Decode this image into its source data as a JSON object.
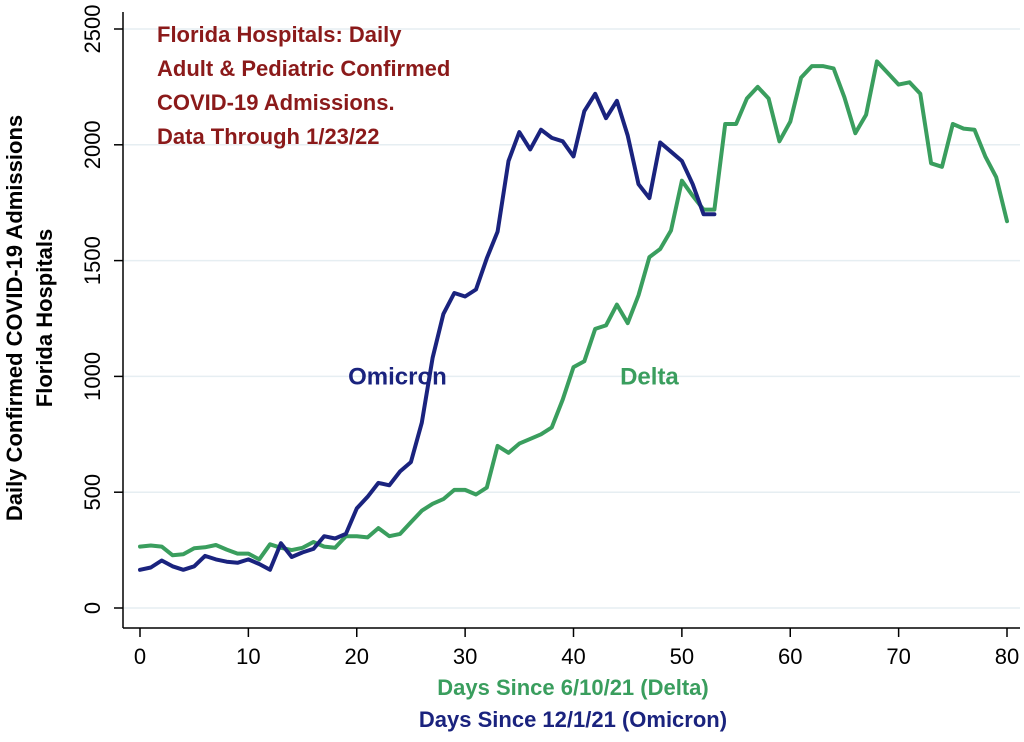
{
  "chart_data": {
    "type": "line",
    "title": [
      "Florida Hospitals: Daily",
      "Adult & Pediatric Confirmed",
      "COVID-19 Admissions.",
      "Data Through 1/23/22"
    ],
    "ylabel": [
      "Daily Confirmed COVID-19 Admissions",
      "Florida Hospitals"
    ],
    "xlabels": [
      {
        "text": "Days Since 6/10/21 (Delta)",
        "color": "#3a9e5e"
      },
      {
        "text": "Days Since 12/1/21 (Omicron)",
        "color": "#1a237e"
      }
    ],
    "xlim": [
      0,
      80
    ],
    "ylim": [
      0,
      2500
    ],
    "x_ticks": [
      0,
      10,
      20,
      30,
      40,
      50,
      60,
      70,
      80
    ],
    "y_ticks": [
      0,
      500,
      1000,
      1500,
      2000,
      2500
    ],
    "grid": true,
    "series": [
      {
        "name": "Delta",
        "color": "#3a9e5e",
        "x": [
          0,
          1,
          2,
          3,
          4,
          5,
          6,
          7,
          8,
          9,
          10,
          11,
          12,
          13,
          14,
          15,
          16,
          17,
          18,
          19,
          20,
          21,
          22,
          23,
          24,
          25,
          26,
          27,
          28,
          29,
          30,
          31,
          32,
          33,
          34,
          35,
          36,
          37,
          38,
          39,
          40,
          41,
          42,
          43,
          44,
          45,
          46,
          47,
          48,
          49,
          50,
          51,
          52,
          53,
          54,
          55,
          56,
          57,
          58,
          59,
          60,
          61,
          62,
          63,
          64,
          65,
          66,
          67,
          68,
          69,
          70,
          71,
          72,
          73,
          74,
          75,
          76,
          77,
          78,
          79,
          80
        ],
        "values": [
          265,
          270,
          265,
          228,
          232,
          258,
          262,
          272,
          252,
          235,
          235,
          210,
          275,
          260,
          250,
          260,
          285,
          265,
          260,
          310,
          310,
          305,
          345,
          310,
          320,
          370,
          420,
          450,
          470,
          510,
          510,
          490,
          520,
          700,
          670,
          710,
          730,
          750,
          780,
          900,
          1040,
          1065,
          1205,
          1220,
          1310,
          1230,
          1350,
          1515,
          1550,
          1630,
          1845,
          1780,
          1720,
          1720,
          2090,
          2090,
          2200,
          2250,
          2200,
          2015,
          2100,
          2290,
          2340,
          2340,
          2330,
          2205,
          2050,
          2130,
          2360,
          2310,
          2260,
          2270,
          2220,
          1920,
          1905,
          2090,
          2070,
          2065,
          1950,
          1860,
          1670
        ]
      },
      {
        "name": "Omicron",
        "color": "#1a237e",
        "x": [
          0,
          1,
          2,
          3,
          4,
          5,
          6,
          7,
          8,
          9,
          10,
          11,
          12,
          13,
          14,
          15,
          16,
          17,
          18,
          19,
          20,
          21,
          22,
          23,
          24,
          25,
          26,
          27,
          28,
          29,
          30,
          31,
          32,
          33,
          34,
          35,
          36,
          37,
          38,
          39,
          40,
          41,
          42,
          43,
          44,
          45,
          46,
          47,
          48,
          49,
          50,
          51,
          52,
          53
        ],
        "values": [
          165,
          175,
          205,
          180,
          165,
          180,
          225,
          210,
          200,
          195,
          210,
          190,
          165,
          280,
          220,
          240,
          255,
          310,
          300,
          320,
          430,
          480,
          540,
          530,
          590,
          630,
          800,
          1080,
          1270,
          1360,
          1345,
          1375,
          1510,
          1625,
          1930,
          2055,
          1980,
          2065,
          2030,
          2015,
          1950,
          2145,
          2220,
          2115,
          2190,
          2040,
          1830,
          1770,
          2010,
          1970,
          1930,
          1830,
          1700,
          1700
        ]
      }
    ],
    "annotations": [
      {
        "text": "Omicron",
        "color": "#1a237e",
        "x": 19.2,
        "y": 1000
      },
      {
        "text": "Delta",
        "color": "#3a9e5e",
        "x": 44.3,
        "y": 1000
      }
    ]
  }
}
